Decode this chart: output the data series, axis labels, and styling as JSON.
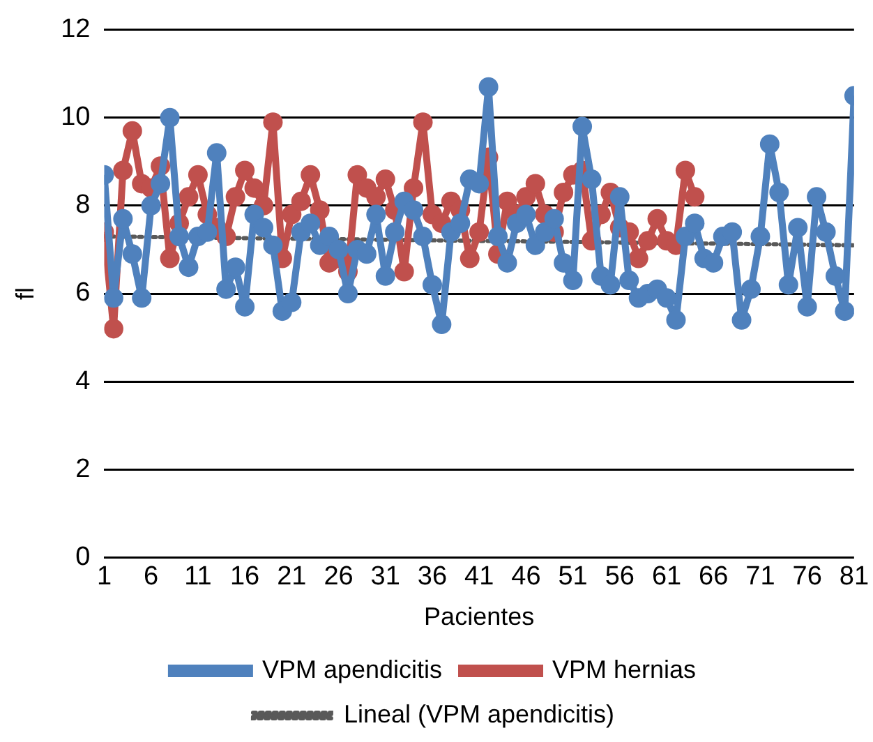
{
  "chart_data": {
    "type": "line",
    "xlabel": "Pacientes",
    "ylabel": "fl",
    "x": [
      1,
      2,
      3,
      4,
      5,
      6,
      7,
      8,
      9,
      10,
      11,
      12,
      13,
      14,
      15,
      16,
      17,
      18,
      19,
      20,
      21,
      22,
      23,
      24,
      25,
      26,
      27,
      28,
      29,
      30,
      31,
      32,
      33,
      34,
      35,
      36,
      37,
      38,
      39,
      40,
      41,
      42,
      43,
      44,
      45,
      46,
      47,
      48,
      49,
      50,
      51,
      52,
      53,
      54,
      55,
      56,
      57,
      58,
      59,
      60,
      61,
      62,
      63,
      64,
      65,
      66,
      67,
      68,
      69,
      70,
      71,
      72,
      73,
      74,
      75,
      76,
      77,
      78,
      79,
      80,
      81
    ],
    "xlim": [
      1,
      81
    ],
    "xticks": [
      1,
      6,
      11,
      16,
      21,
      26,
      31,
      36,
      41,
      46,
      51,
      56,
      61,
      66,
      71,
      76,
      81
    ],
    "ylim": [
      0,
      12
    ],
    "yticks": [
      0,
      2,
      4,
      6,
      8,
      10,
      12
    ],
    "grid": "y",
    "legend": "bottom",
    "marker": "circle",
    "series": [
      {
        "name": "VPM apendicitis",
        "color": "#4f81bd",
        "values": [
          8.7,
          5.9,
          7.7,
          6.9,
          5.9,
          8.0,
          8.5,
          10.0,
          7.3,
          6.6,
          7.3,
          7.4,
          9.2,
          6.1,
          6.6,
          5.7,
          7.8,
          7.5,
          7.1,
          5.6,
          5.8,
          7.4,
          7.6,
          7.1,
          7.3,
          7.0,
          6.0,
          7.0,
          6.9,
          7.8,
          6.4,
          7.4,
          8.1,
          7.9,
          7.3,
          6.2,
          5.3,
          7.4,
          7.6,
          8.6,
          8.5,
          10.7,
          7.3,
          6.7,
          7.6,
          7.8,
          7.1,
          7.4,
          7.7,
          6.7,
          6.3,
          9.8,
          8.6,
          6.4,
          6.2,
          8.2,
          6.3,
          5.9,
          6.0,
          6.1,
          5.9,
          5.4,
          7.3,
          7.6,
          6.8,
          6.7,
          7.3,
          7.4,
          5.4,
          6.1,
          7.3,
          9.4,
          8.3,
          6.2,
          7.5,
          5.7,
          8.2,
          7.4,
          6.4,
          5.6,
          10.5
        ]
      },
      {
        "name": "VPM hernias",
        "color": "#c0504d",
        "x": [
          1,
          2,
          3,
          4,
          5,
          6,
          7,
          8,
          9,
          10,
          11,
          12,
          13,
          14,
          15,
          16,
          17,
          18,
          19,
          20,
          21,
          22,
          23,
          24,
          25,
          26,
          27,
          28,
          29,
          30,
          31,
          32,
          33,
          34,
          35,
          36,
          37,
          38,
          39,
          40,
          41,
          42,
          43,
          44,
          45,
          46,
          47,
          48,
          49,
          50,
          51,
          52,
          53,
          54,
          55,
          56,
          57,
          58,
          59,
          60,
          61,
          62,
          63,
          64
        ],
        "values": [
          7.4,
          5.2,
          8.8,
          9.7,
          8.5,
          8.4,
          8.9,
          6.8,
          7.6,
          8.2,
          8.7,
          7.8,
          7.5,
          7.3,
          8.2,
          8.8,
          8.4,
          8.0,
          9.9,
          6.8,
          7.8,
          8.1,
          8.7,
          7.9,
          6.7,
          6.8,
          6.5,
          8.7,
          8.4,
          8.2,
          8.6,
          7.9,
          6.5,
          8.4,
          9.9,
          7.8,
          7.6,
          8.1,
          7.9,
          6.8,
          7.4,
          9.1,
          6.9,
          8.1,
          7.8,
          8.2,
          8.5,
          7.8,
          7.4,
          8.3,
          8.7,
          8.8,
          7.2,
          7.8,
          8.3,
          7.5,
          7.4,
          6.8,
          7.2,
          7.7,
          7.2,
          7.1,
          8.8,
          8.2
        ]
      },
      {
        "name": "Lineal (VPM apendicitis)",
        "color": "#595959",
        "type": "line",
        "marker": "none",
        "line_style": "dotted",
        "x": [
          1,
          81
        ],
        "values": [
          7.3,
          7.1
        ]
      }
    ]
  }
}
